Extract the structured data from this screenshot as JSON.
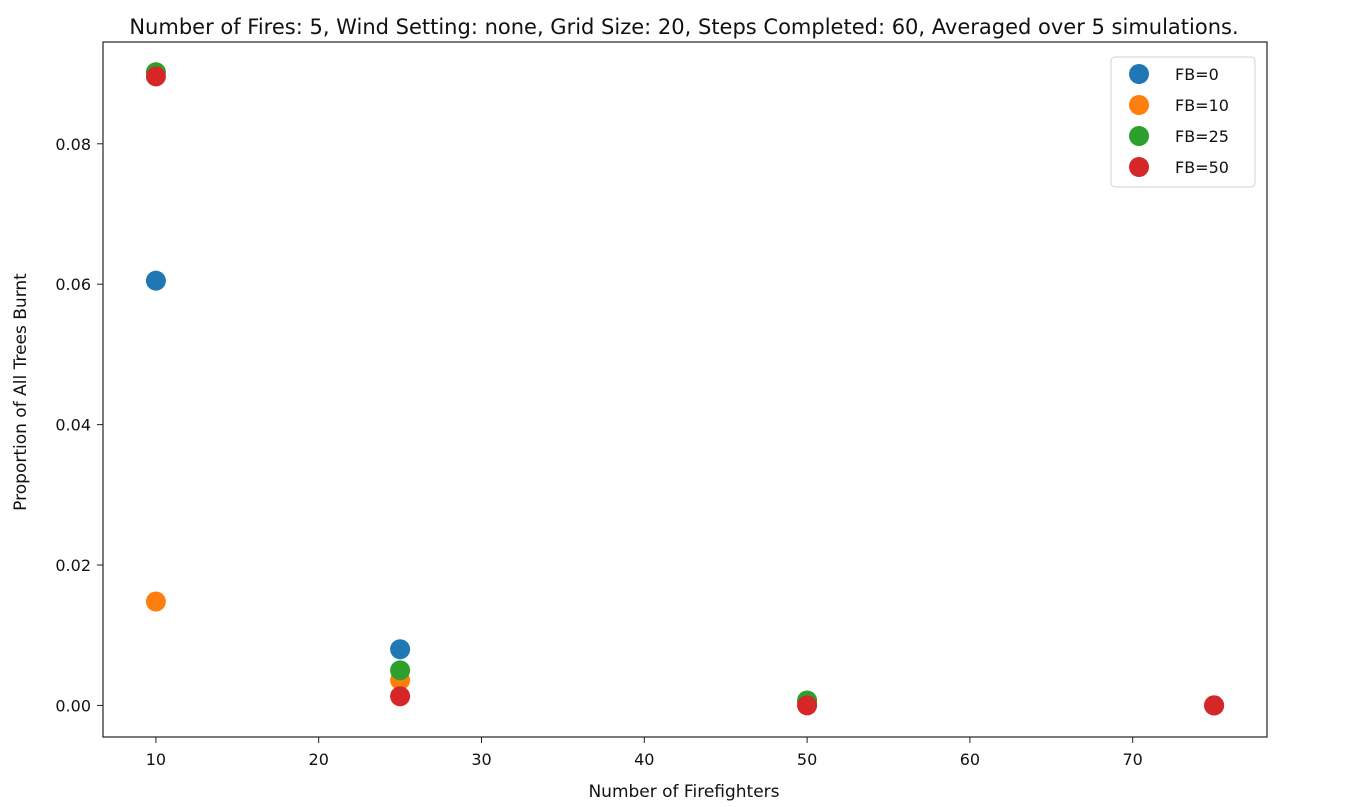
{
  "chart_data": {
    "type": "scatter",
    "title": "Number of Fires: 5, Wind Setting: none, Grid Size: 20, Steps Completed: 60, Averaged over 5 simulations.",
    "xlabel": "Number of Firefighters",
    "ylabel": "Proportion of All Trees Burnt",
    "xlim": [
      6.75,
      78.25
    ],
    "ylim": [
      -0.0045,
      0.0945
    ],
    "x_ticks": [
      10,
      20,
      30,
      40,
      50,
      60,
      70
    ],
    "y_ticks": [
      0.0,
      0.02,
      0.04,
      0.06,
      0.08
    ],
    "x_tick_labels": [
      "10",
      "20",
      "30",
      "40",
      "50",
      "60",
      "70"
    ],
    "y_tick_labels": [
      "0.00",
      "0.02",
      "0.04",
      "0.06",
      "0.08"
    ],
    "grid": false,
    "legend_position": "top-right",
    "series": [
      {
        "name": "FB=0",
        "color": "#1f77b4",
        "x": [
          10,
          25,
          50,
          75
        ],
        "y": [
          0.0605,
          0.008,
          0.0005,
          0.0
        ]
      },
      {
        "name": "FB=10",
        "color": "#ff7f0e",
        "x": [
          10,
          25,
          50,
          75
        ],
        "y": [
          0.0148,
          0.0036,
          0.0002,
          0.0
        ]
      },
      {
        "name": "FB=25",
        "color": "#2ca02c",
        "x": [
          10,
          25,
          50,
          75
        ],
        "y": [
          0.0902,
          0.005,
          0.0007,
          0.0
        ]
      },
      {
        "name": "FB=50",
        "color": "#d62728",
        "x": [
          10,
          25,
          50,
          75
        ],
        "y": [
          0.0896,
          0.0013,
          0.0,
          0.0
        ]
      }
    ]
  }
}
